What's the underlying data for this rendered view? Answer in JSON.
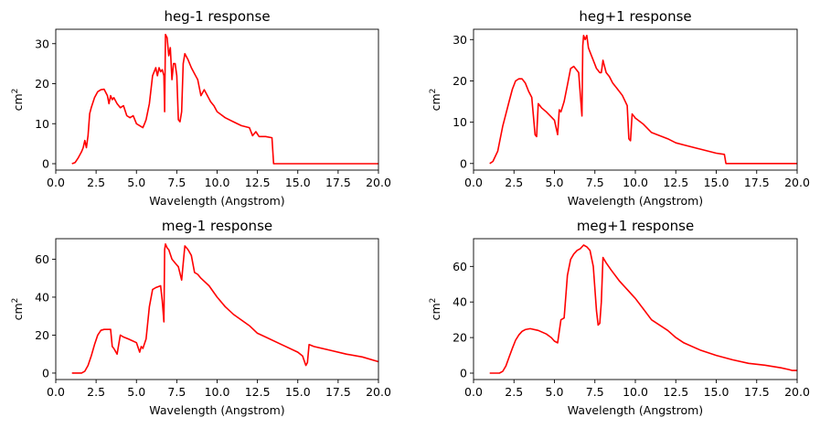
{
  "figure": {
    "background": "#ffffff",
    "line_color": "#ff0000"
  },
  "chart_data": [
    {
      "type": "line",
      "title": "heg-1 response",
      "xlabel": "Wavelength (Angstrom)",
      "ylabel": "cm",
      "ylabel_superscript": "2",
      "xlim": [
        0,
        20
      ],
      "ylim": [
        -1.6,
        33.6
      ],
      "xticks": [
        0,
        2.5,
        5,
        7.5,
        10,
        12.5,
        15,
        17.5,
        20
      ],
      "xtick_labels": [
        "0.0",
        "2.5",
        "5.0",
        "7.5",
        "10.0",
        "12.5",
        "15.0",
        "17.5",
        "20.0"
      ],
      "yticks": [
        0,
        10,
        20,
        30
      ],
      "ytick_labels": [
        "0",
        "10",
        "20",
        "30"
      ],
      "grid": false,
      "series": [
        {
          "color": "#ff0000",
          "x": [
            1.0,
            1.2,
            1.4,
            1.6,
            1.7,
            1.8,
            1.9,
            2.0,
            2.1,
            2.2,
            2.4,
            2.6,
            2.8,
            3.0,
            3.2,
            3.3,
            3.4,
            3.5,
            3.6,
            3.8,
            4.0,
            4.2,
            4.4,
            4.6,
            4.8,
            5.0,
            5.2,
            5.4,
            5.5,
            5.6,
            5.8,
            6.0,
            6.2,
            6.3,
            6.4,
            6.5,
            6.6,
            6.7,
            6.75,
            6.8,
            6.9,
            7.0,
            7.1,
            7.2,
            7.3,
            7.4,
            7.5,
            7.6,
            7.7,
            7.8,
            7.9,
            8.0,
            8.2,
            8.4,
            8.6,
            8.8,
            9.0,
            9.2,
            9.4,
            9.6,
            9.8,
            10.0,
            10.5,
            11.0,
            11.5,
            12.0,
            12.2,
            12.4,
            12.6,
            13.0,
            13.4,
            13.5,
            13.6,
            14.0,
            15.0,
            17.5,
            20.0
          ],
          "y": [
            0,
            0.3,
            1.5,
            3,
            4,
            5.8,
            4,
            7,
            12.5,
            14,
            16.5,
            18,
            18.5,
            18.6,
            17,
            15,
            17,
            16,
            16.5,
            15,
            14,
            14.5,
            12,
            11.5,
            12,
            10,
            9.5,
            9,
            10,
            11,
            15,
            22,
            24,
            22,
            24,
            23,
            23.5,
            22,
            13,
            32.3,
            31.5,
            27,
            29,
            21,
            25,
            25,
            22,
            11,
            10.5,
            13,
            25,
            27.5,
            26,
            24,
            22.5,
            21,
            17,
            18.5,
            17,
            15.5,
            14.5,
            13,
            11.5,
            10.5,
            9.5,
            9,
            7,
            8,
            6.8,
            6.8,
            6.5,
            0,
            0,
            0,
            0,
            0,
            0
          ]
        }
      ]
    },
    {
      "type": "line",
      "title": "heg+1 response",
      "xlabel": "Wavelength (Angstrom)",
      "ylabel": "cm",
      "ylabel_superscript": "2",
      "xlim": [
        0,
        20
      ],
      "ylim": [
        -1.6,
        32.5
      ],
      "xticks": [
        0,
        2.5,
        5,
        7.5,
        10,
        12.5,
        15,
        17.5,
        20
      ],
      "xtick_labels": [
        "0.0",
        "2.5",
        "5.0",
        "7.5",
        "10.0",
        "12.5",
        "15.0",
        "17.5",
        "20.0"
      ],
      "yticks": [
        0,
        10,
        20,
        30
      ],
      "ytick_labels": [
        "0",
        "10",
        "20",
        "30"
      ],
      "grid": false,
      "series": [
        {
          "color": "#ff0000",
          "x": [
            1.0,
            1.2,
            1.5,
            1.8,
            2.0,
            2.2,
            2.4,
            2.6,
            2.8,
            3.0,
            3.2,
            3.4,
            3.6,
            3.8,
            3.9,
            4.0,
            4.1,
            4.2,
            4.5,
            5.0,
            5.2,
            5.3,
            5.4,
            5.6,
            5.8,
            6.0,
            6.2,
            6.5,
            6.7,
            6.75,
            6.8,
            6.9,
            7.0,
            7.1,
            7.2,
            7.4,
            7.6,
            7.8,
            7.9,
            8.0,
            8.2,
            8.4,
            8.6,
            8.8,
            9.0,
            9.2,
            9.5,
            9.6,
            9.7,
            9.8,
            10.0,
            10.5,
            11.0,
            12.0,
            12.5,
            13.0,
            14.0,
            15.0,
            15.5,
            15.6,
            20.0
          ],
          "y": [
            0,
            0.5,
            3,
            9,
            12,
            15,
            18,
            20,
            20.5,
            20.5,
            19.5,
            17.5,
            16,
            7,
            6.5,
            14.5,
            14,
            13.5,
            12.5,
            10.5,
            7,
            13,
            12.5,
            15,
            19,
            23,
            23.5,
            22,
            11.5,
            28.5,
            31,
            30,
            31,
            28,
            27,
            25,
            23,
            22,
            22,
            25,
            22,
            21,
            19.5,
            18.5,
            17.5,
            16.5,
            14,
            6,
            5.5,
            12,
            11,
            9.5,
            7.5,
            6,
            5,
            4.5,
            3.5,
            2.5,
            2.2,
            0,
            0
          ]
        }
      ]
    },
    {
      "type": "line",
      "title": "meg-1 response",
      "xlabel": "Wavelength (Angstrom)",
      "ylabel": "cm",
      "ylabel_superscript": "2",
      "xlim": [
        0,
        20
      ],
      "ylim": [
        -3.4,
        70.8
      ],
      "xticks": [
        0,
        2.5,
        5,
        7.5,
        10,
        12.5,
        15,
        17.5,
        20
      ],
      "xtick_labels": [
        "0.0",
        "2.5",
        "5.0",
        "7.5",
        "10.0",
        "12.5",
        "15.0",
        "17.5",
        "20.0"
      ],
      "yticks": [
        0,
        20,
        40,
        60
      ],
      "ytick_labels": [
        "0",
        "20",
        "40",
        "60"
      ],
      "grid": false,
      "series": [
        {
          "color": "#ff0000",
          "x": [
            1.0,
            1.6,
            1.8,
            2.0,
            2.2,
            2.4,
            2.6,
            2.8,
            3.0,
            3.2,
            3.4,
            3.5,
            3.6,
            3.8,
            4.0,
            4.2,
            4.5,
            5.0,
            5.2,
            5.3,
            5.4,
            5.6,
            5.8,
            6.0,
            6.2,
            6.5,
            6.6,
            6.7,
            6.75,
            6.8,
            6.9,
            7.0,
            7.2,
            7.4,
            7.6,
            7.8,
            8.0,
            8.2,
            8.4,
            8.6,
            8.8,
            9.0,
            9.5,
            10.0,
            10.5,
            11.0,
            12.0,
            12.5,
            13.0,
            14.0,
            15.0,
            15.3,
            15.5,
            15.6,
            15.7,
            16.0,
            17.0,
            18.0,
            19.0,
            20.0
          ],
          "y": [
            0,
            0,
            1,
            4,
            9,
            15,
            20,
            22.5,
            23,
            23,
            23,
            14,
            13,
            10,
            20,
            19,
            18,
            16,
            11,
            14,
            13,
            18,
            35,
            44,
            45,
            46,
            38,
            27,
            65,
            68,
            66,
            65,
            60,
            58,
            56,
            49,
            67,
            65,
            62,
            53,
            52,
            50,
            46,
            40,
            35,
            31,
            25,
            21,
            19,
            15,
            11,
            9,
            4,
            5.5,
            15,
            14,
            12,
            10,
            8.5,
            6
          ]
        }
      ]
    },
    {
      "type": "line",
      "title": "meg+1 response",
      "xlabel": "Wavelength (Angstrom)",
      "ylabel": "cm",
      "ylabel_superscript": "2",
      "xlim": [
        0,
        20
      ],
      "ylim": [
        -3.6,
        75.6
      ],
      "xticks": [
        0,
        2.5,
        5,
        7.5,
        10,
        12.5,
        15,
        17.5,
        20
      ],
      "xtick_labels": [
        "0.0",
        "2.5",
        "5.0",
        "7.5",
        "10.0",
        "12.5",
        "15.0",
        "17.5",
        "20.0"
      ],
      "yticks": [
        0,
        20,
        40,
        60
      ],
      "ytick_labels": [
        "0",
        "20",
        "40",
        "60"
      ],
      "grid": false,
      "series": [
        {
          "color": "#ff0000",
          "x": [
            1.0,
            1.6,
            1.8,
            2.0,
            2.2,
            2.4,
            2.6,
            2.8,
            3.0,
            3.2,
            3.5,
            4.0,
            4.5,
            4.8,
            5.0,
            5.2,
            5.4,
            5.6,
            5.8,
            6.0,
            6.2,
            6.4,
            6.6,
            6.8,
            7.0,
            7.2,
            7.4,
            7.6,
            7.7,
            7.8,
            7.9,
            8.0,
            8.2,
            8.5,
            9.0,
            9.5,
            10.0,
            10.5,
            11.0,
            12.0,
            12.5,
            13.0,
            14.0,
            15.0,
            16.0,
            17.0,
            18.0,
            19.0,
            19.5,
            19.7,
            20.0
          ],
          "y": [
            0,
            0,
            1,
            4,
            9,
            14,
            18.5,
            21.5,
            23.5,
            24.5,
            25,
            24,
            22,
            20,
            18,
            17,
            30,
            31,
            55,
            64,
            67,
            69,
            70,
            72,
            71,
            69,
            60,
            35,
            27,
            28,
            40,
            65,
            62,
            58,
            52,
            47,
            42,
            36,
            30,
            24,
            20,
            17,
            13,
            10,
            7.5,
            5.5,
            4.5,
            3,
            2,
            1.5,
            1.5
          ]
        }
      ]
    }
  ]
}
